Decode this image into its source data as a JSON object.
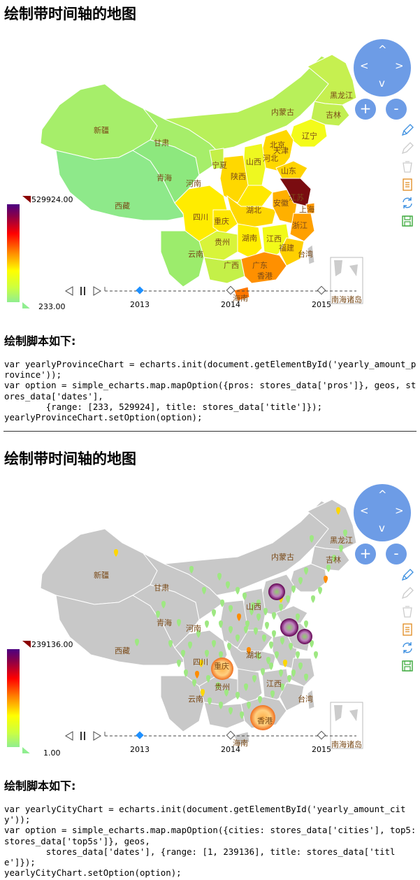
{
  "sections": [
    {
      "title": "绘制带时间轴的地图",
      "subhead": "绘制脚本如下:",
      "code": "var yearlyProvinceChart = echarts.init(document.getElementById('yearly_amount_province'));\nvar option = simple_echarts.map.mapOption({pros: stores_data['pros']}, geos, stores_data['dates'],\n        {range: [233, 529924], title: stores_data['title']});\nyearlyProvinceChart.setOption(option);",
      "visual_map": {
        "max": "529924.00",
        "min": "233.00"
      },
      "timeline": {
        "years": [
          "2013",
          "2014",
          "2015"
        ],
        "active": 0
      },
      "province_labels": [
        "黑龙江",
        "吉林",
        "内蒙古",
        "辽宁",
        "新疆",
        "甘肃",
        "北京",
        "天津",
        "宁夏",
        "山西",
        "河北",
        "青海",
        "陕西",
        "山东",
        "河南",
        "西藏",
        "江苏",
        "安徽",
        "上海",
        "四川",
        "湖北",
        "重庆",
        "浙江",
        "贵州",
        "湖南",
        "江西",
        "福建",
        "云南",
        "广西",
        "广东",
        "台湾",
        "香港",
        "海南",
        "南海诸岛"
      ]
    },
    {
      "title": "绘制带时间轴的地图",
      "subhead": "绘制脚本如下:",
      "code": "var yearlyCityChart = echarts.init(document.getElementById('yearly_amount_city'));\nvar option = simple_echarts.map.mapOption({cities: stores_data['cities'], top5: stores_data['top5s']}, geos,\n        stores_data['dates'], {range: [1, 239136], title: stores_data['title']});\nyearlyCityChart.setOption(option);",
      "visual_map": {
        "max": "239136.00",
        "min": "1.00"
      },
      "timeline": {
        "years": [
          "2013",
          "2014",
          "2015"
        ],
        "active": 0
      },
      "province_labels": [
        "黑龙江",
        "吉林",
        "内蒙古",
        "新疆",
        "甘肃",
        "山西",
        "青海",
        "河南",
        "西藏",
        "四川",
        "湖北",
        "重庆",
        "贵州",
        "江西",
        "云南",
        "台湾",
        "香港",
        "海南",
        "南海诸岛"
      ]
    }
  ],
  "controls": {
    "nav": {
      "up": "^",
      "down": "v",
      "left": "<",
      "right": ">"
    },
    "zoom_in": "+",
    "zoom_out": "-"
  },
  "colors": {
    "nav_blue": "#6d9ce6",
    "toolbox_blue": "#3b8fe0",
    "toolbox_orange": "#e08a1e",
    "toolbox_green": "#3aa83a",
    "map_gray": "#c8c8c8"
  },
  "toolbox": [
    "pencil-icon",
    "eraser-icon",
    "trash-icon",
    "data-view-icon",
    "refresh-icon",
    "save-image-icon"
  ]
}
